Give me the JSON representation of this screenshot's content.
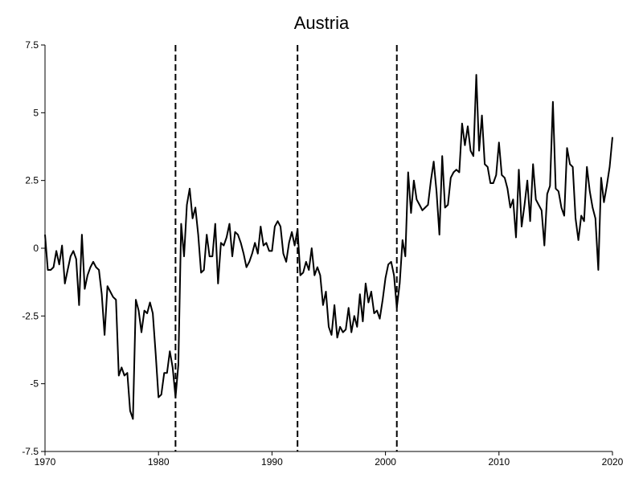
{
  "chart_data": {
    "type": "line",
    "title": "Austria",
    "xlabel": "",
    "ylabel": "",
    "xlim": [
      1970,
      2020
    ],
    "ylim": [
      -7.5,
      7.5
    ],
    "x_ticks": [
      1970,
      1980,
      1990,
      2000,
      2010,
      2020
    ],
    "x_tick_labels": [
      "1970",
      "1980",
      "1990",
      "2000",
      "2010",
      "2020"
    ],
    "y_ticks": [
      -7.5,
      -5,
      -2.5,
      0,
      2.5,
      5,
      7.5
    ],
    "y_tick_labels": [
      "-7.5",
      "-5",
      "-2.5",
      "0",
      "2.5",
      "5",
      "7.5"
    ],
    "grid": false,
    "line_color": "#000000",
    "vertical_lines": [
      {
        "x": 1981.5,
        "style": "dashed"
      },
      {
        "x": 1992.25,
        "style": "dashed"
      },
      {
        "x": 2001.0,
        "style": "dashed"
      }
    ],
    "series": [
      {
        "values": [
          [
            1970.0,
            0.5
          ],
          [
            1970.25,
            -0.8
          ],
          [
            1970.5,
            -0.8
          ],
          [
            1970.75,
            -0.7
          ],
          [
            1971.0,
            -0.1
          ],
          [
            1971.25,
            -0.6
          ],
          [
            1971.5,
            0.1
          ],
          [
            1971.75,
            -1.3
          ],
          [
            1972.0,
            -0.8
          ],
          [
            1972.25,
            -0.3
          ],
          [
            1972.5,
            -0.1
          ],
          [
            1972.75,
            -0.4
          ],
          [
            1973.0,
            -2.1
          ],
          [
            1973.25,
            0.5
          ],
          [
            1973.5,
            -1.5
          ],
          [
            1973.75,
            -1.0
          ],
          [
            1974.0,
            -0.7
          ],
          [
            1974.25,
            -0.5
          ],
          [
            1974.5,
            -0.7
          ],
          [
            1974.75,
            -0.8
          ],
          [
            1975.0,
            -1.7
          ],
          [
            1975.25,
            -3.2
          ],
          [
            1975.5,
            -1.4
          ],
          [
            1975.75,
            -1.6
          ],
          [
            1976.0,
            -1.8
          ],
          [
            1976.25,
            -1.9
          ],
          [
            1976.5,
            -4.7
          ],
          [
            1976.75,
            -4.4
          ],
          [
            1977.0,
            -4.7
          ],
          [
            1977.25,
            -4.6
          ],
          [
            1977.5,
            -6.0
          ],
          [
            1977.75,
            -6.3
          ],
          [
            1978.0,
            -1.9
          ],
          [
            1978.25,
            -2.3
          ],
          [
            1978.5,
            -3.1
          ],
          [
            1978.75,
            -2.3
          ],
          [
            1979.0,
            -2.4
          ],
          [
            1979.25,
            -2.0
          ],
          [
            1979.5,
            -2.4
          ],
          [
            1979.75,
            -3.9
          ],
          [
            1980.0,
            -5.5
          ],
          [
            1980.25,
            -5.4
          ],
          [
            1980.5,
            -4.6
          ],
          [
            1980.75,
            -4.6
          ],
          [
            1981.0,
            -3.8
          ],
          [
            1981.25,
            -4.4
          ],
          [
            1981.5,
            -5.5
          ],
          [
            1981.75,
            -4.3
          ],
          [
            1982.0,
            0.9
          ],
          [
            1982.25,
            -0.3
          ],
          [
            1982.5,
            1.6
          ],
          [
            1982.75,
            2.2
          ],
          [
            1983.0,
            1.1
          ],
          [
            1983.25,
            1.5
          ],
          [
            1983.5,
            0.5
          ],
          [
            1983.75,
            -0.9
          ],
          [
            1984.0,
            -0.8
          ],
          [
            1984.25,
            0.5
          ],
          [
            1984.5,
            -0.3
          ],
          [
            1984.75,
            -0.3
          ],
          [
            1985.0,
            0.9
          ],
          [
            1985.25,
            -1.3
          ],
          [
            1985.5,
            0.2
          ],
          [
            1985.75,
            0.1
          ],
          [
            1986.0,
            0.4
          ],
          [
            1986.25,
            0.9
          ],
          [
            1986.5,
            -0.3
          ],
          [
            1986.75,
            0.6
          ],
          [
            1987.0,
            0.5
          ],
          [
            1987.25,
            0.2
          ],
          [
            1987.5,
            -0.2
          ],
          [
            1987.75,
            -0.7
          ],
          [
            1988.0,
            -0.5
          ],
          [
            1988.25,
            -0.2
          ],
          [
            1988.5,
            0.2
          ],
          [
            1988.75,
            -0.2
          ],
          [
            1989.0,
            0.8
          ],
          [
            1989.25,
            0.1
          ],
          [
            1989.5,
            0.2
          ],
          [
            1989.75,
            -0.1
          ],
          [
            1990.0,
            -0.1
          ],
          [
            1990.25,
            0.8
          ],
          [
            1990.5,
            1.0
          ],
          [
            1990.75,
            0.8
          ],
          [
            1991.0,
            -0.2
          ],
          [
            1991.25,
            -0.5
          ],
          [
            1991.5,
            0.2
          ],
          [
            1991.75,
            0.6
          ],
          [
            1992.0,
            0.1
          ],
          [
            1992.25,
            0.7
          ],
          [
            1992.5,
            -1.0
          ],
          [
            1992.75,
            -0.9
          ],
          [
            1993.0,
            -0.5
          ],
          [
            1993.25,
            -0.8
          ],
          [
            1993.5,
            0.0
          ],
          [
            1993.75,
            -1.0
          ],
          [
            1994.0,
            -0.7
          ],
          [
            1994.25,
            -1.0
          ],
          [
            1994.5,
            -2.1
          ],
          [
            1994.75,
            -1.6
          ],
          [
            1995.0,
            -2.9
          ],
          [
            1995.25,
            -3.2
          ],
          [
            1995.5,
            -2.1
          ],
          [
            1995.75,
            -3.3
          ],
          [
            1996.0,
            -2.9
          ],
          [
            1996.25,
            -3.1
          ],
          [
            1996.5,
            -3.0
          ],
          [
            1996.75,
            -2.2
          ],
          [
            1997.0,
            -3.1
          ],
          [
            1997.25,
            -2.5
          ],
          [
            1997.5,
            -2.9
          ],
          [
            1997.75,
            -1.7
          ],
          [
            1998.0,
            -2.7
          ],
          [
            1998.25,
            -1.3
          ],
          [
            1998.5,
            -2.0
          ],
          [
            1998.75,
            -1.6
          ],
          [
            1999.0,
            -2.4
          ],
          [
            1999.25,
            -2.3
          ],
          [
            1999.5,
            -2.6
          ],
          [
            1999.75,
            -1.9
          ],
          [
            2000.0,
            -1.1
          ],
          [
            2000.25,
            -0.6
          ],
          [
            2000.5,
            -0.5
          ],
          [
            2000.75,
            -1.0
          ],
          [
            2001.0,
            -2.2
          ],
          [
            2001.25,
            -1.3
          ],
          [
            2001.5,
            0.3
          ],
          [
            2001.75,
            -0.3
          ],
          [
            2002.0,
            2.8
          ],
          [
            2002.25,
            1.3
          ],
          [
            2002.5,
            2.5
          ],
          [
            2002.75,
            1.8
          ],
          [
            2003.0,
            1.6
          ],
          [
            2003.25,
            1.4
          ],
          [
            2003.5,
            1.5
          ],
          [
            2003.75,
            1.6
          ],
          [
            2004.0,
            2.5
          ],
          [
            2004.25,
            3.2
          ],
          [
            2004.5,
            2.1
          ],
          [
            2004.75,
            0.5
          ],
          [
            2005.0,
            3.4
          ],
          [
            2005.25,
            1.5
          ],
          [
            2005.5,
            1.6
          ],
          [
            2005.75,
            2.6
          ],
          [
            2006.0,
            2.8
          ],
          [
            2006.25,
            2.9
          ],
          [
            2006.5,
            2.8
          ],
          [
            2006.75,
            4.6
          ],
          [
            2007.0,
            3.8
          ],
          [
            2007.25,
            4.5
          ],
          [
            2007.5,
            3.6
          ],
          [
            2007.75,
            3.4
          ],
          [
            2008.0,
            6.4
          ],
          [
            2008.25,
            3.6
          ],
          [
            2008.5,
            4.9
          ],
          [
            2008.75,
            3.1
          ],
          [
            2009.0,
            3.0
          ],
          [
            2009.25,
            2.4
          ],
          [
            2009.5,
            2.4
          ],
          [
            2009.75,
            2.7
          ],
          [
            2010.0,
            3.9
          ],
          [
            2010.25,
            2.7
          ],
          [
            2010.5,
            2.6
          ],
          [
            2010.75,
            2.2
          ],
          [
            2011.0,
            1.5
          ],
          [
            2011.25,
            1.8
          ],
          [
            2011.5,
            0.4
          ],
          [
            2011.75,
            2.9
          ],
          [
            2012.0,
            0.8
          ],
          [
            2012.25,
            1.6
          ],
          [
            2012.5,
            2.5
          ],
          [
            2012.75,
            1.0
          ],
          [
            2013.0,
            3.1
          ],
          [
            2013.25,
            1.8
          ],
          [
            2013.5,
            1.6
          ],
          [
            2013.75,
            1.4
          ],
          [
            2014.0,
            0.1
          ],
          [
            2014.25,
            2.0
          ],
          [
            2014.5,
            2.3
          ],
          [
            2014.75,
            5.4
          ],
          [
            2015.0,
            2.2
          ],
          [
            2015.25,
            2.1
          ],
          [
            2015.5,
            1.5
          ],
          [
            2015.75,
            1.2
          ],
          [
            2016.0,
            3.7
          ],
          [
            2016.25,
            3.1
          ],
          [
            2016.5,
            3.0
          ],
          [
            2016.75,
            1.1
          ],
          [
            2017.0,
            0.3
          ],
          [
            2017.25,
            1.2
          ],
          [
            2017.5,
            1.0
          ],
          [
            2017.75,
            3.0
          ],
          [
            2018.0,
            2.1
          ],
          [
            2018.25,
            1.5
          ],
          [
            2018.5,
            1.1
          ],
          [
            2018.75,
            -0.8
          ],
          [
            2019.0,
            2.6
          ],
          [
            2019.25,
            1.7
          ],
          [
            2019.5,
            2.3
          ],
          [
            2019.75,
            3.0
          ],
          [
            2020.0,
            4.1
          ]
        ]
      }
    ]
  }
}
